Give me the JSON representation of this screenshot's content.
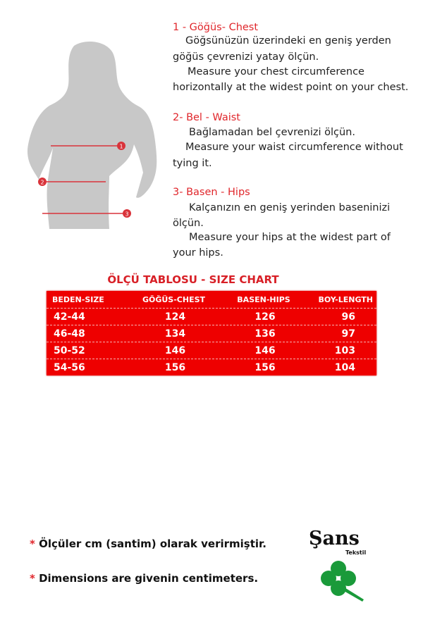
{
  "instructions": [
    {
      "heading": "1 - Göğüs- Chest",
      "lines": [
        "Göğsünüzün üzerindeki en geniş yerden",
        "göğüs çevrenizi yatay ölçün.",
        "Measure your chest circumference",
        "horizontally at the widest point on your chest."
      ]
    },
    {
      "heading": "2- Bel - Waist",
      "lines": [
        "Bağlamadan bel çevrenizi ölçün.",
        "Measure your waist circumference without",
        "tying it."
      ]
    },
    {
      "heading": "3- Basen - Hips",
      "lines": [
        "Kalçanızın en geniş yerinden baseninizi",
        "ölçün.",
        "Measure your hips at the widest part of",
        "your hips."
      ]
    }
  ],
  "figure": {
    "markers": [
      "1",
      "2",
      "3"
    ]
  },
  "size_chart": {
    "title": "ÖLÇÜ TABLOSU - SIZE CHART",
    "headers": [
      "BEDEN-SIZE",
      "GÖĞÜS-CHEST",
      "BASEN-HIPS",
      "BOY-LENGTH"
    ],
    "rows": [
      [
        "42-44",
        "124",
        "126",
        "96"
      ],
      [
        "46-48",
        "134",
        "136",
        "97"
      ],
      [
        "50-52",
        "146",
        "146",
        "103"
      ],
      [
        "54-56",
        "156",
        "156",
        "104"
      ]
    ]
  },
  "footer": {
    "star": "*",
    "line1": "Ölçüler  cm (santim) olarak verirmiştir.",
    "line2": "Dimensions are givenin centimeters."
  },
  "logo": {
    "brand": "Şans",
    "sub": "Tekstil"
  },
  "colors": {
    "accent": "#e0262b",
    "table_bg": "#ee0000",
    "clover": "#1a9a3a",
    "silhouette": "#c8c8c8"
  }
}
